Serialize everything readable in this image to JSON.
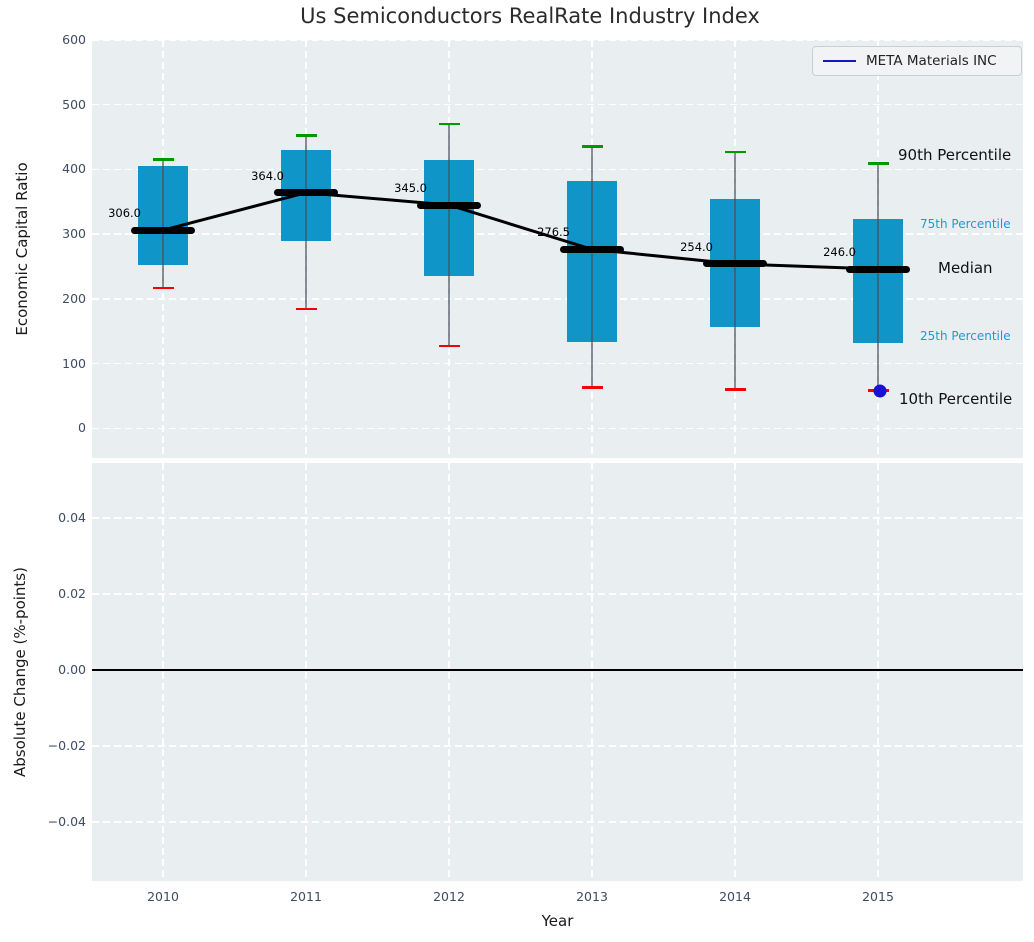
{
  "title": "Us Semiconductors RealRate Industry Index",
  "legend": {
    "label": "META Materials INC"
  },
  "colors": {
    "box_fill": "#1095c9",
    "whisker": "#5a6a72",
    "cap_high": "#009a00",
    "cap_low": "#f80000",
    "median": "#000000",
    "meta_point": "#1414d2",
    "legend_line": "#1414d2",
    "axes_bg": "#e9eef0",
    "grid": "#ffffff",
    "tick_label": "#3e4c63",
    "cyan_label": "#189dd3",
    "text_dark": "#1a1a1a"
  },
  "chart_data": [
    {
      "type": "boxplot",
      "title": "Us Semiconductors RealRate Industry Index",
      "ylabel": "Economic Capital Ratio",
      "ylim": [
        -46,
        600
      ],
      "yticks": [
        600,
        500,
        400,
        300,
        200,
        100,
        0
      ],
      "ytick_labels": [
        "600",
        "500",
        "400",
        "300",
        "200",
        "100",
        "0"
      ],
      "grid": true,
      "legend_position": "upper right",
      "categories": [
        2010,
        2011,
        2012,
        2013,
        2014,
        2015
      ],
      "boxes": [
        {
          "year": 2010,
          "p10": 217,
          "p25": 253,
          "median": 306.0,
          "p75": 405,
          "p90": 415,
          "median_label": "306.0"
        },
        {
          "year": 2011,
          "p10": 184,
          "p25": 289,
          "median": 364.0,
          "p75": 430,
          "p90": 452,
          "median_label": "364.0"
        },
        {
          "year": 2012,
          "p10": 127,
          "p25": 236,
          "median": 345.0,
          "p75": 415,
          "p90": 470,
          "median_label": "345.0"
        },
        {
          "year": 2013,
          "p10": 63,
          "p25": 133,
          "median": 276.5,
          "p75": 382,
          "p90": 435,
          "median_label": "276.5"
        },
        {
          "year": 2014,
          "p10": 60,
          "p25": 156,
          "median": 254.0,
          "p75": 355,
          "p90": 427,
          "median_label": "254.0"
        },
        {
          "year": 2015,
          "p10": 58,
          "p25": 132,
          "median": 246.0,
          "p75": 323,
          "p90": 409,
          "median_label": "246.0"
        }
      ],
      "series": [
        {
          "name": "Median",
          "x": [
            2010,
            2011,
            2012,
            2013,
            2014,
            2015
          ],
          "values": [
            306.0,
            364.0,
            345.0,
            276.5,
            254.0,
            246.0
          ]
        },
        {
          "name": "META Materials INC",
          "x": [
            2015
          ],
          "values": [
            57
          ]
        }
      ],
      "percentile_labels": [
        {
          "text": "90th Percentile",
          "anchor": "p90",
          "style": "large"
        },
        {
          "text": "75th Percentile",
          "anchor": "p75",
          "style": "small"
        },
        {
          "text": "Median",
          "anchor": "median",
          "style": "large"
        },
        {
          "text": "25th Percentile",
          "anchor": "p25",
          "style": "small"
        },
        {
          "text": "10th Percentile",
          "anchor": "p10",
          "style": "large"
        }
      ]
    },
    {
      "type": "line",
      "ylabel": "Absolute Change (%-points)",
      "xlabel": "Year",
      "ylim": [
        -0.0555,
        0.0545
      ],
      "yticks": [
        0.04,
        0.02,
        0.0,
        -0.02,
        -0.04
      ],
      "ytick_labels": [
        "0.04",
        "0.02",
        "0.00",
        "−0.02",
        "−0.04"
      ],
      "xticks": [
        2010,
        2011,
        2012,
        2013,
        2014,
        2015
      ],
      "xtick_labels": [
        "2010",
        "2011",
        "2012",
        "2013",
        "2014",
        "2015"
      ],
      "reference_line_y": 0.0,
      "grid": true,
      "series": []
    }
  ]
}
